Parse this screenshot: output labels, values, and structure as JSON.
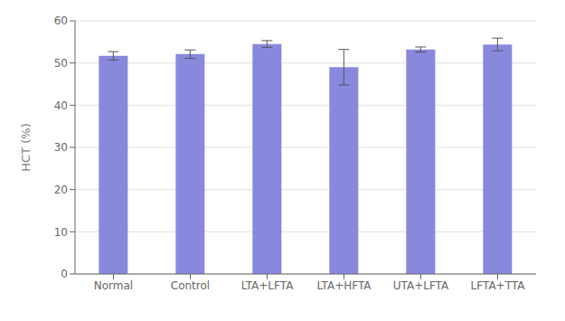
{
  "chart_data": {
    "type": "bar",
    "categories": [
      "Normal",
      "Control",
      "LTA+LFTA",
      "LTA+HFTA",
      "UTA+LFTA",
      "LFTA+TTA"
    ],
    "values": [
      51.7,
      52.1,
      54.5,
      49.0,
      53.2,
      54.4
    ],
    "errors": [
      1.0,
      1.0,
      0.8,
      4.2,
      0.6,
      1.5
    ],
    "color": "#8888dd",
    "ylabel": "HCT (%)",
    "ylim": [
      0,
      60
    ],
    "yticks": [
      0,
      10,
      20,
      30,
      40,
      50,
      60
    ],
    "grid": true
  }
}
